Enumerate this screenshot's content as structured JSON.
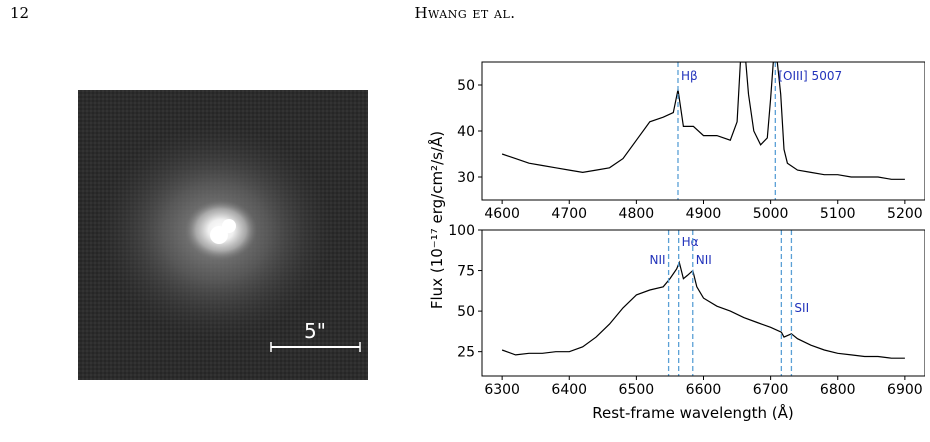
{
  "header": {
    "page_number": "12",
    "running_head": "Hwang et al."
  },
  "image_panel": {
    "scale_bar_label": "5\""
  },
  "figure": {
    "ylabel": "Flux (10⁻¹⁷ erg/cm²/s/Å)",
    "xlabel": "Rest-frame wavelength (Å)"
  },
  "chart_data": [
    {
      "type": "line",
      "panel": "top",
      "xlim": [
        4570,
        5230
      ],
      "ylim": [
        25,
        55
      ],
      "xticks": [
        4600,
        4700,
        4800,
        4900,
        5000,
        5100,
        5200
      ],
      "yticks": [
        30,
        40,
        50
      ],
      "x": [
        4600,
        4620,
        4640,
        4660,
        4680,
        4700,
        4720,
        4740,
        4760,
        4780,
        4800,
        4820,
        4840,
        4855,
        4862,
        4870,
        4885,
        4900,
        4920,
        4940,
        4950,
        4955,
        4959,
        4963,
        4967,
        4975,
        4985,
        4995,
        5000,
        5004,
        5007,
        5010,
        5015,
        5020,
        5025,
        5040,
        5060,
        5080,
        5100,
        5120,
        5140,
        5160,
        5180,
        5200
      ],
      "series": [
        {
          "color": "#000000",
          "y": [
            35,
            34,
            33,
            32.5,
            32,
            31.5,
            31,
            31.5,
            32,
            34,
            38,
            42,
            43,
            44,
            49,
            41,
            41,
            39,
            39,
            38,
            42,
            55,
            55,
            55,
            48,
            40,
            37,
            38.5,
            47,
            55,
            55,
            55,
            48,
            36,
            33,
            31.5,
            31,
            30.5,
            30.5,
            30,
            30,
            30,
            29.5,
            29.5
          ]
        }
      ],
      "line_markers": [
        {
          "x": 4862,
          "label": "Hβ"
        },
        {
          "x": 5007,
          "label": "[OIII] 5007"
        }
      ]
    },
    {
      "type": "line",
      "panel": "bottom",
      "xlim": [
        6270,
        6930
      ],
      "ylim": [
        10,
        100
      ],
      "xticks": [
        6300,
        6400,
        6500,
        6600,
        6700,
        6800,
        6900
      ],
      "yticks": [
        25,
        50,
        75,
        100
      ],
      "x": [
        6300,
        6320,
        6340,
        6360,
        6380,
        6400,
        6420,
        6440,
        6460,
        6480,
        6500,
        6520,
        6540,
        6550,
        6560,
        6564,
        6570,
        6576,
        6584,
        6590,
        6600,
        6620,
        6640,
        6660,
        6680,
        6700,
        6716,
        6720,
        6731,
        6740,
        6760,
        6780,
        6800,
        6820,
        6840,
        6860,
        6880,
        6900
      ],
      "series": [
        {
          "color": "#000000",
          "y": [
            26,
            23,
            24,
            24,
            25,
            25,
            28,
            34,
            42,
            52,
            60,
            63,
            65,
            70,
            76,
            80,
            70,
            72,
            75,
            65,
            58,
            53,
            50,
            46,
            43,
            40,
            37,
            34,
            36,
            33,
            29,
            26,
            24,
            23,
            22,
            22,
            21,
            21
          ]
        }
      ],
      "line_markers": [
        {
          "x": 6548,
          "label": "NII"
        },
        {
          "x": 6563,
          "label": "Hα"
        },
        {
          "x": 6584,
          "label": "NII"
        },
        {
          "x": 6716,
          "label": ""
        },
        {
          "x": 6731,
          "label": "SII"
        }
      ]
    }
  ],
  "colors": {
    "line_marker": "#5aa0d6",
    "marker_label": "#2233bb",
    "spectrum": "#000000",
    "image_background": "#2a2a2a"
  }
}
